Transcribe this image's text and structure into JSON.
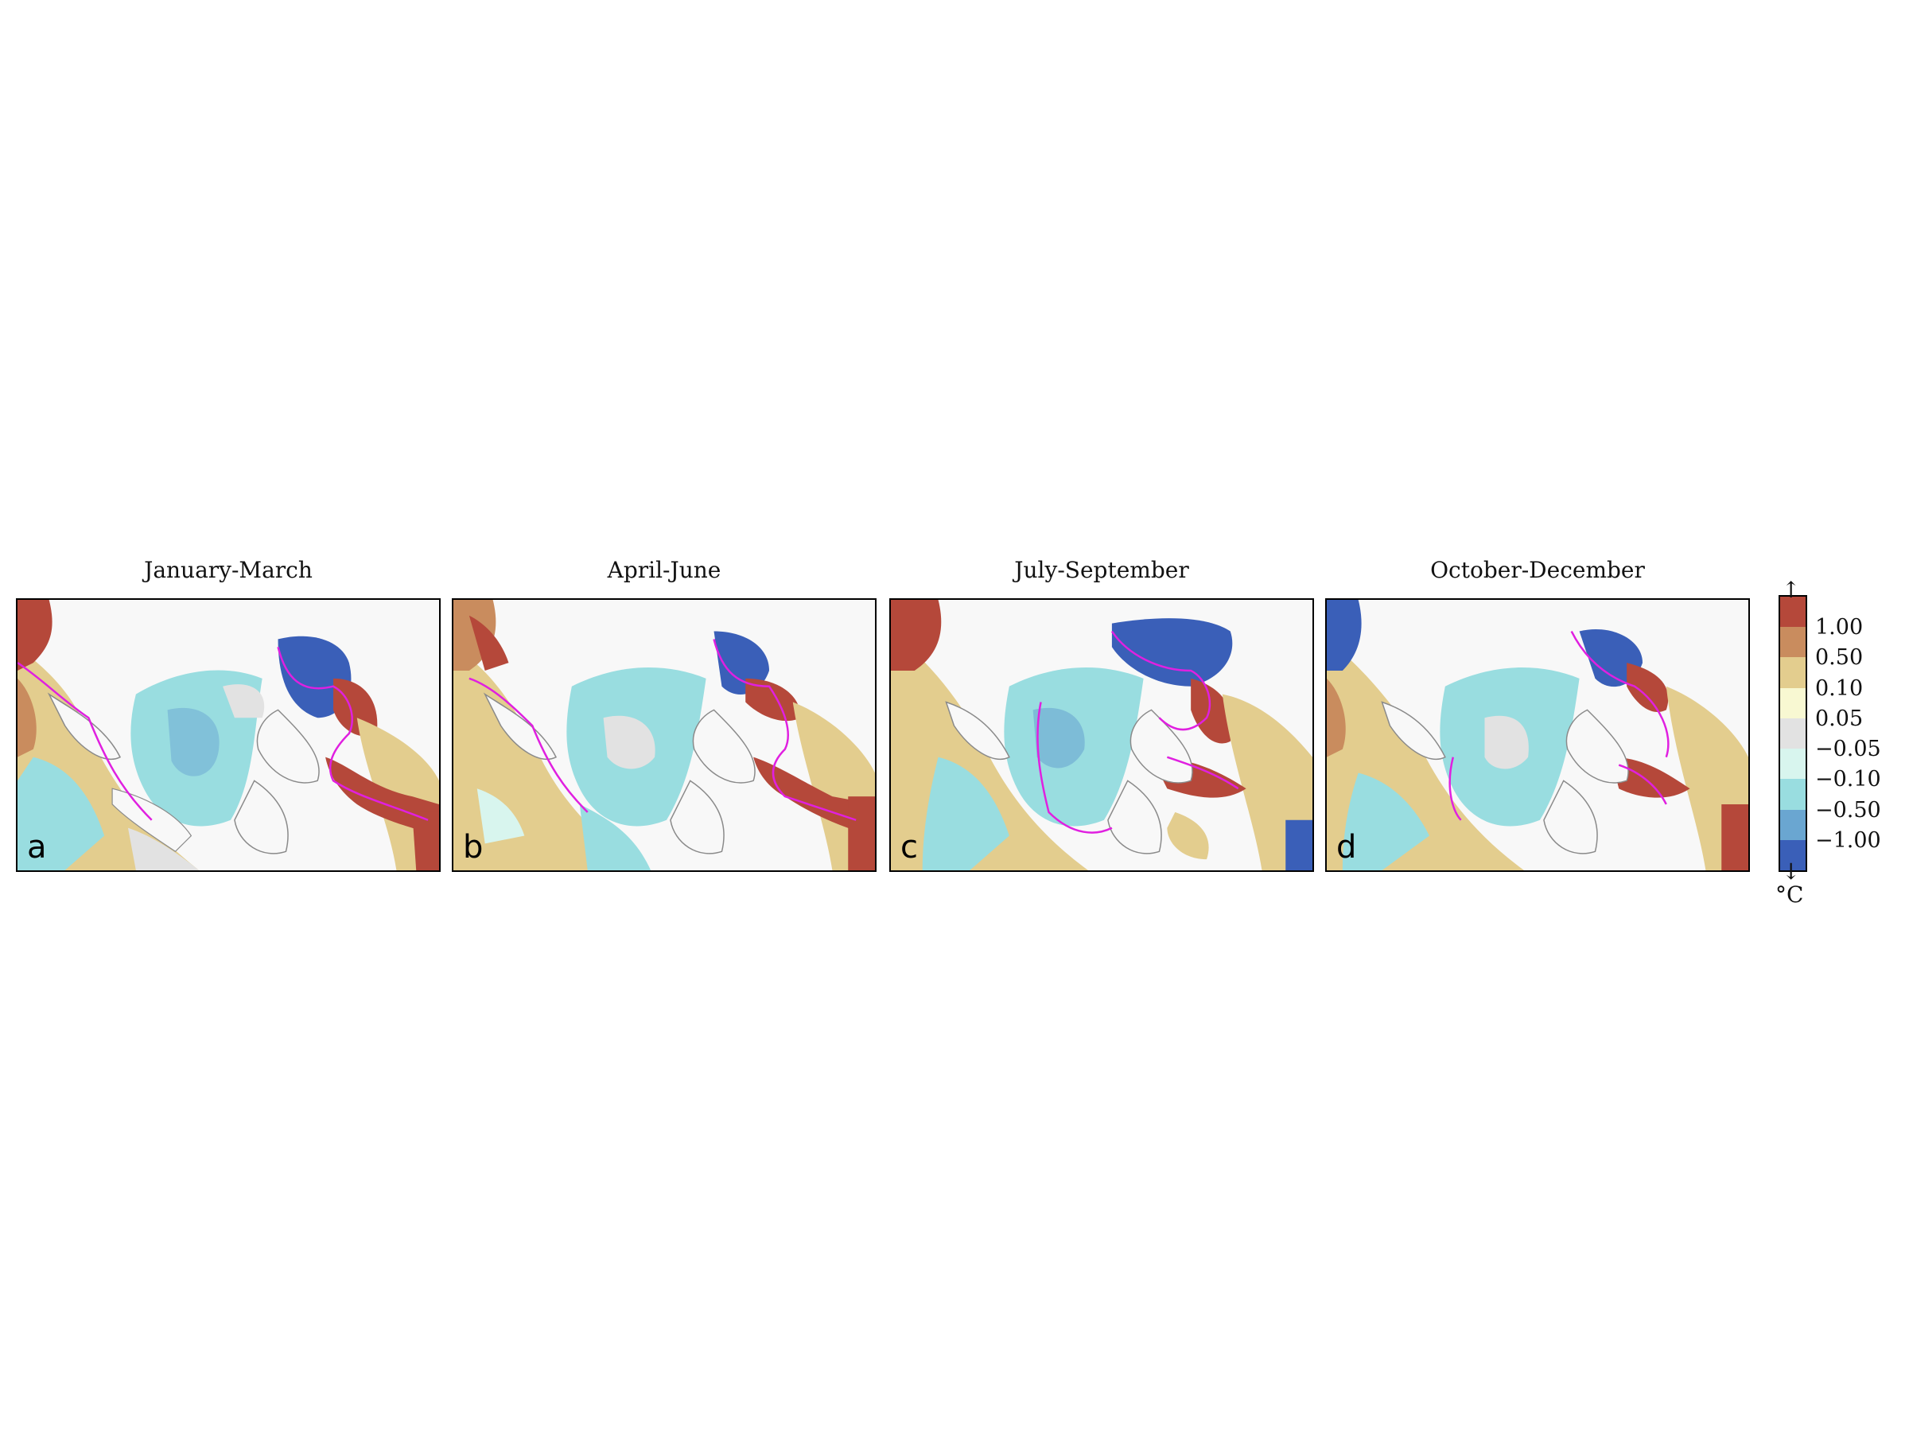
{
  "panels": [
    {
      "title": "January-March",
      "letter": "a"
    },
    {
      "title": "April-June",
      "letter": "b"
    },
    {
      "title": "July-September",
      "letter": "c"
    },
    {
      "title": "October-December",
      "letter": "d"
    }
  ],
  "colorbar": {
    "unit": "°C",
    "top_arrow": "↑",
    "bottom_arrow": "↓",
    "tick_labels": [
      "1.00",
      "0.50",
      "0.10",
      "0.05",
      "−0.05",
      "−0.10",
      "−0.50",
      "−1.00"
    ],
    "colors": [
      "#b5483a",
      "#c98c5e",
      "#e3cd8e",
      "#f8f8d2",
      "#e2e2e2",
      "#d8f5ee",
      "#99dde0",
      "#6aa6d1",
      "#3a5fb8"
    ]
  },
  "map_colors": {
    "land": "#f8f8f8",
    "coast": "#8a8a8a",
    "ice_edge": "#e020e0",
    "strong_warm": "#b5483a",
    "warm": "#c98c5e",
    "mild_warm": "#e3cd8e",
    "neutral": "#e2e2e2",
    "mild_cool": "#99dde0",
    "cool": "#6aa6d1",
    "strong_cool": "#3a5fb8"
  }
}
